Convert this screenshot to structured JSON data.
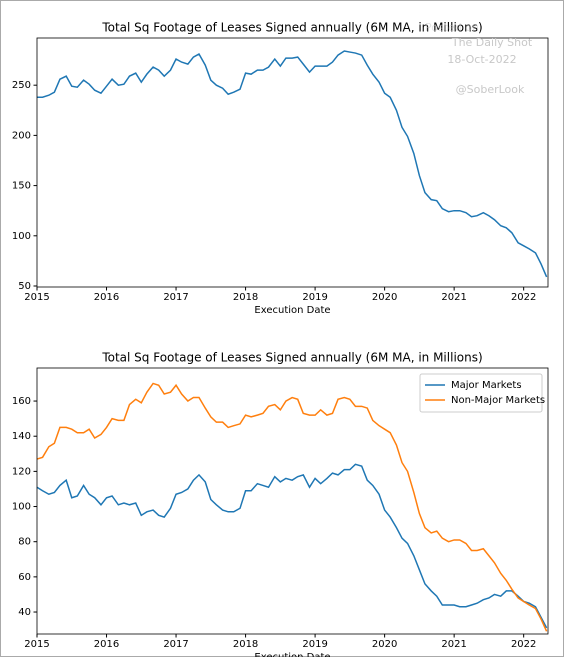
{
  "chart_data": [
    {
      "type": "line",
      "title": "Total Sq Footage of Leases Signed annually (6M MA, in Millions)",
      "xlabel": "Execution Date",
      "annotations": [
        "Posted on",
        "The Daily Shot",
        "18-Oct-2022",
        "@SoberLook"
      ],
      "x": [
        2015,
        2015.08,
        2015.17,
        2015.25,
        2015.33,
        2015.42,
        2015.5,
        2015.58,
        2015.67,
        2015.75,
        2015.83,
        2015.92,
        2016,
        2016.08,
        2016.17,
        2016.25,
        2016.33,
        2016.42,
        2016.5,
        2016.58,
        2016.67,
        2016.75,
        2016.83,
        2016.92,
        2017,
        2017.08,
        2017.17,
        2017.25,
        2017.33,
        2017.42,
        2017.5,
        2017.58,
        2017.67,
        2017.75,
        2017.83,
        2017.92,
        2018,
        2018.08,
        2018.17,
        2018.25,
        2018.33,
        2018.42,
        2018.5,
        2018.58,
        2018.67,
        2018.75,
        2018.83,
        2018.92,
        2019,
        2019.08,
        2019.17,
        2019.25,
        2019.33,
        2019.42,
        2019.5,
        2019.58,
        2019.67,
        2019.75,
        2019.83,
        2019.92,
        2020,
        2020.08,
        2020.17,
        2020.25,
        2020.33,
        2020.42,
        2020.5,
        2020.58,
        2020.67,
        2020.75,
        2020.83,
        2020.92,
        2021,
        2021.08,
        2021.17,
        2021.25,
        2021.33,
        2021.42,
        2021.5,
        2021.58,
        2021.67,
        2021.75,
        2021.83,
        2021.92,
        2022,
        2022.08,
        2022.17,
        2022.25,
        2022.33
      ],
      "values": [
        238,
        238,
        240,
        243,
        256,
        259,
        249,
        248,
        255,
        251,
        245,
        242,
        249,
        256,
        250,
        251,
        259,
        262,
        253,
        261,
        268,
        265,
        259,
        265,
        276,
        273,
        271,
        278,
        281,
        270,
        255,
        250,
        247,
        241,
        243,
        246,
        262,
        261,
        265,
        265,
        268,
        276,
        269,
        277,
        277,
        278,
        271,
        263,
        269,
        269,
        269,
        273,
        280,
        284,
        283,
        282,
        280,
        270,
        261,
        253,
        242,
        238,
        225,
        208,
        199,
        182,
        160,
        143,
        136,
        135,
        127,
        124,
        125,
        125,
        123,
        119,
        120,
        123,
        120,
        116,
        110,
        108,
        103,
        93,
        90,
        87,
        83,
        72,
        59
      ],
      "color": "#1f77b4",
      "xlim": [
        2015,
        2022.35
      ],
      "xticks": [
        2015,
        2016,
        2017,
        2018,
        2019,
        2020,
        2021,
        2022
      ],
      "ylim": [
        49,
        297
      ],
      "yticks": [
        50,
        100,
        150,
        200,
        250
      ]
    },
    {
      "type": "line",
      "title": "Total Sq Footage of Leases Signed annually (6M MA, in Millions)",
      "xlabel": "Execution Date",
      "x": [
        2015,
        2015.08,
        2015.17,
        2015.25,
        2015.33,
        2015.42,
        2015.5,
        2015.58,
        2015.67,
        2015.75,
        2015.83,
        2015.92,
        2016,
        2016.08,
        2016.17,
        2016.25,
        2016.33,
        2016.42,
        2016.5,
        2016.58,
        2016.67,
        2016.75,
        2016.83,
        2016.92,
        2017,
        2017.08,
        2017.17,
        2017.25,
        2017.33,
        2017.42,
        2017.5,
        2017.58,
        2017.67,
        2017.75,
        2017.83,
        2017.92,
        2018,
        2018.08,
        2018.17,
        2018.25,
        2018.33,
        2018.42,
        2018.5,
        2018.58,
        2018.67,
        2018.75,
        2018.83,
        2018.92,
        2019,
        2019.08,
        2019.17,
        2019.25,
        2019.33,
        2019.42,
        2019.5,
        2019.58,
        2019.67,
        2019.75,
        2019.83,
        2019.92,
        2020,
        2020.08,
        2020.17,
        2020.25,
        2020.33,
        2020.42,
        2020.5,
        2020.58,
        2020.67,
        2020.75,
        2020.83,
        2020.92,
        2021,
        2021.08,
        2021.17,
        2021.25,
        2021.33,
        2021.42,
        2021.5,
        2021.58,
        2021.67,
        2021.75,
        2021.83,
        2021.92,
        2022,
        2022.08,
        2022.17,
        2022.25,
        2022.33
      ],
      "series": [
        {
          "name": "Major Markets",
          "color": "#1f77b4",
          "values": [
            111,
            109,
            107,
            108,
            112,
            115,
            105,
            106,
            112,
            107,
            105,
            101,
            105,
            106,
            101,
            102,
            101,
            102,
            95,
            97,
            98,
            95,
            94,
            99,
            107,
            108,
            110,
            115,
            118,
            114,
            104,
            101,
            98,
            97,
            97,
            99,
            109,
            109,
            113,
            112,
            111,
            117,
            114,
            116,
            115,
            117,
            118,
            111,
            116,
            113,
            116,
            119,
            118,
            121,
            121,
            124,
            123,
            115,
            112,
            107,
            98,
            94,
            88,
            82,
            79,
            72,
            64,
            56,
            52,
            49,
            44,
            44,
            44,
            43,
            43,
            44,
            45,
            47,
            48,
            50,
            49,
            52,
            52,
            49,
            46,
            45,
            43,
            37,
            31
          ]
        },
        {
          "name": "Non-Major Markets",
          "color": "#ff7f0e",
          "values": [
            127,
            128,
            134,
            136,
            145,
            145,
            144,
            142,
            142,
            144,
            139,
            141,
            145,
            150,
            149,
            149,
            158,
            161,
            159,
            165,
            170,
            169,
            164,
            165,
            169,
            164,
            160,
            162,
            162,
            156,
            151,
            148,
            148,
            145,
            146,
            147,
            152,
            151,
            152,
            153,
            157,
            158,
            155,
            160,
            162,
            161,
            153,
            152,
            152,
            155,
            152,
            153,
            161,
            162,
            161,
            157,
            157,
            156,
            149,
            146,
            144,
            142,
            135,
            125,
            120,
            108,
            96,
            88,
            85,
            86,
            82,
            80,
            81,
            81,
            79,
            75,
            75,
            76,
            72,
            68,
            62,
            58,
            53,
            48,
            46,
            44,
            42,
            36,
            29
          ]
        }
      ],
      "legend": "upper right",
      "xlim": [
        2015,
        2022.35
      ],
      "xticks": [
        2015,
        2016,
        2017,
        2018,
        2019,
        2020,
        2021,
        2022
      ],
      "ylim": [
        27.5,
        178.8
      ],
      "yticks": [
        40,
        60,
        80,
        100,
        120,
        140,
        160
      ]
    }
  ]
}
